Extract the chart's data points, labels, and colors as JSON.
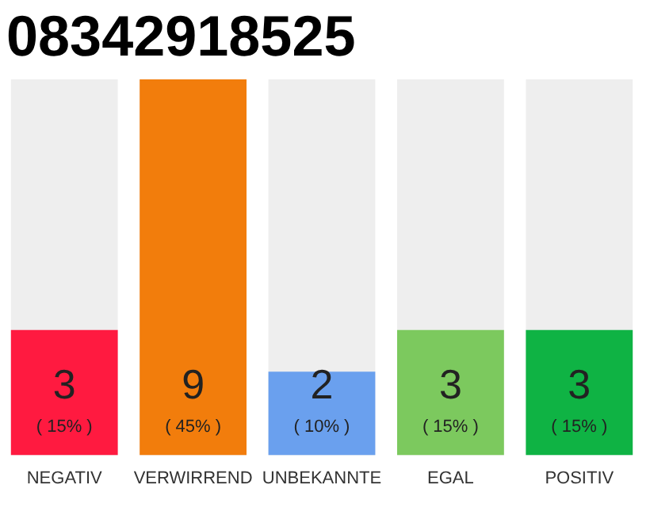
{
  "chart_data": {
    "type": "bar",
    "title": "08342918525",
    "categories": [
      "NEGATIV",
      "VERWIRREND",
      "UNBEKANNTE",
      "EGAL",
      "POSITIV"
    ],
    "values": [
      3,
      9,
      2,
      3,
      3
    ],
    "colors": [
      "#ff1a40",
      "#f27d0c",
      "#6aa0ee",
      "#7cc95e",
      "#0fb344"
    ],
    "value_labels": [
      "3\n( 15% )",
      "9\n( 45% )",
      "2\n( 10% )",
      "3\n( 15% )",
      "3\n( 15% )"
    ],
    "grid": false,
    "legend": false,
    "tick_labels": "x"
  }
}
